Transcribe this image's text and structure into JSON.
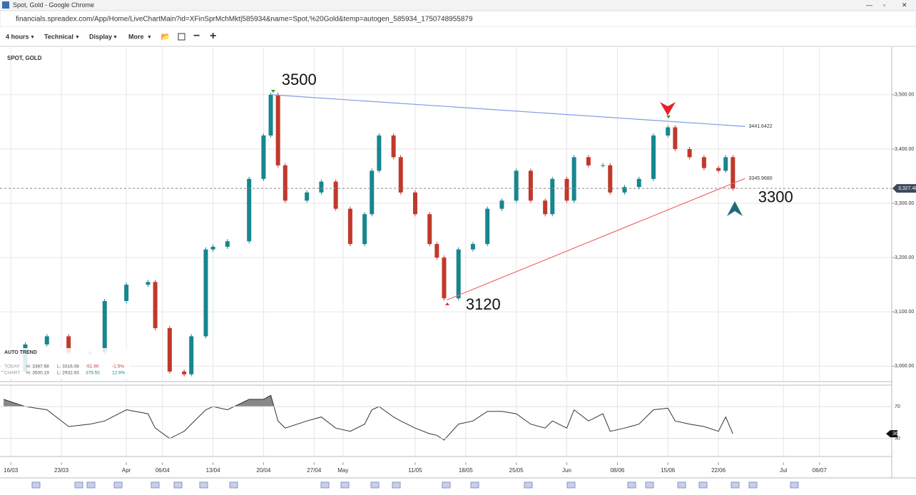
{
  "browser": {
    "title": "Spot, Gold - Google Chrome",
    "url": "financials.spreadex.com/App/Home/LiveChartMain?id=XFinSprMchMkt|585934&name=Spot,%20Gold&temp=autogen_585934_1750748955879"
  },
  "toolbar": [
    "4 hours",
    "Technical",
    "Display",
    "More"
  ],
  "chart_data": {
    "type": "candlestick",
    "title": "SPOT, GOLD",
    "x": [
      -1,
      2,
      5,
      8,
      11,
      13,
      16,
      19,
      20,
      22,
      24,
      25,
      27,
      28,
      30,
      33,
      35,
      36,
      37,
      38,
      41,
      43,
      45,
      47,
      49,
      50,
      51,
      53,
      54,
      56,
      58,
      59,
      60,
      62,
      64,
      66,
      68,
      70,
      72,
      74,
      75,
      77,
      78,
      80,
      82,
      83,
      85,
      87,
      89,
      91,
      92,
      94,
      96,
      98,
      99,
      100
    ],
    "values": [
      2991,
      3040,
      3055,
      3025,
      3025,
      3120,
      3150,
      3155,
      3070,
      2990,
      2985,
      3055,
      3215,
      3220,
      3230,
      3345,
      3425,
      3500,
      3370,
      3305,
      3320,
      3340,
      3290,
      3225,
      3280,
      3360,
      3425,
      3385,
      3320,
      3280,
      3225,
      3200,
      3125,
      3215,
      3225,
      3290,
      3305,
      3360,
      3305,
      3280,
      3345,
      3305,
      3385,
      3370,
      3370,
      3320,
      3330,
      3345,
      3425,
      3440,
      3400,
      3385,
      3365,
      3360,
      3385,
      3327
    ],
    "up_color": "#17868f",
    "down_color": "#c0392b",
    "xlim": [
      -1.5,
      122
    ],
    "xticks": [
      {
        "value": 0,
        "label": "16/03"
      },
      {
        "value": 7,
        "label": "23/03"
      },
      {
        "value": 16,
        "label": "Apr"
      },
      {
        "value": 21,
        "label": "06/04"
      },
      {
        "value": 28,
        "label": "13/04"
      },
      {
        "value": 35,
        "label": "20/04"
      },
      {
        "value": 42,
        "label": "27/04"
      },
      {
        "value": 46,
        "label": "May"
      },
      {
        "value": 56,
        "label": "11/05"
      },
      {
        "value": 63,
        "label": "18/05"
      },
      {
        "value": 70,
        "label": "25/05"
      },
      {
        "value": 77,
        "label": "Jun"
      },
      {
        "value": 84,
        "label": "08/06"
      },
      {
        "value": 91,
        "label": "15/06"
      },
      {
        "value": 98,
        "label": "22/06"
      },
      {
        "value": 107,
        "label": "Jul"
      },
      {
        "value": 112,
        "label": "06/07"
      }
    ],
    "ylim": [
      2971.5,
      3587.9
    ],
    "yticks": [
      {
        "value": 3000,
        "label": "3,000.00"
      },
      {
        "value": 3100,
        "label": "3,100.00"
      },
      {
        "value": 3200,
        "label": "3,200.00"
      },
      {
        "value": 3300,
        "label": "3,300.00"
      },
      {
        "value": 3400,
        "label": "3,400.00"
      },
      {
        "value": 3500,
        "label": "3,500.00"
      }
    ],
    "grid": true,
    "last_price": {
      "value": 3327.48,
      "label": "3,327.48"
    },
    "trendlines": [
      {
        "color": "#7f9be6",
        "x": [
          36.2,
          101.7
        ],
        "y": [
          3500,
          3441.6422
        ],
        "label": "3441.6422"
      },
      {
        "color": "#f06a6a",
        "x": [
          60.4,
          101.7
        ],
        "y": [
          3122,
          3345.968
        ],
        "label": "3345.9680"
      }
    ],
    "annotations": [
      {
        "text": "3500",
        "x": 37.5,
        "y": 3526
      },
      {
        "text": "3120",
        "x": 63,
        "y": 3112
      },
      {
        "text": "3300",
        "x": 103.5,
        "y": 3310
      }
    ],
    "indicator": {
      "type": "line",
      "values": [
        79,
        70,
        66,
        45,
        48,
        52,
        66,
        61,
        43,
        30,
        39,
        48,
        66,
        70,
        66,
        79,
        79,
        84,
        52,
        43,
        52,
        57,
        43,
        39,
        48,
        66,
        70,
        57,
        52,
        43,
        36,
        34,
        28,
        48,
        52,
        64,
        64,
        61,
        48,
        43,
        52,
        43,
        66,
        52,
        61,
        39,
        43,
        48,
        66,
        68,
        52,
        48,
        45,
        39,
        57,
        36
      ],
      "color": "#333333",
      "ylim": [
        7.5,
        96.8
      ],
      "yticks": [
        70,
        30
      ]
    }
  },
  "info_panel": {
    "title": "AUTO TREND",
    "rows": [
      [
        "TODAY",
        "H: 3387.68",
        "L: 3316.08",
        "-51.90",
        "-1.5%"
      ],
      [
        "CHART",
        "H: 3500.19",
        "L: 2932.93",
        "379.55",
        "12.9%"
      ]
    ]
  }
}
